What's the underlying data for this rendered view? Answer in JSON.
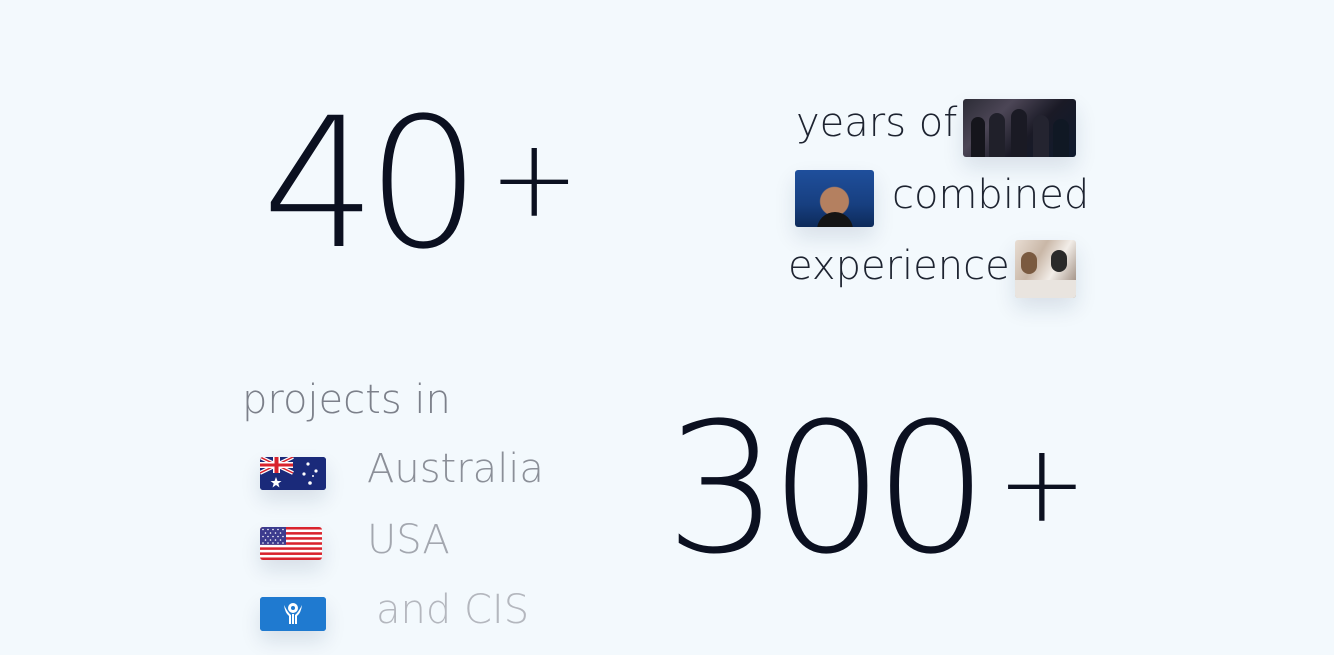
{
  "stats": {
    "years_number": "40",
    "years_suffix": "+",
    "projects_number": "300",
    "projects_suffix": "+"
  },
  "experience_caption": {
    "line1": "years of",
    "line2": "combined",
    "line3": "experience"
  },
  "projects_caption": {
    "title": "projects in",
    "countries": [
      {
        "name": "Australia",
        "flag_icon": "australia-flag-icon"
      },
      {
        "name": "USA",
        "flag_icon": "usa-flag-icon"
      },
      {
        "name": "and CIS",
        "flag_icon": "cis-flag-icon"
      }
    ]
  },
  "colors": {
    "background": "#f3f9fd",
    "number": "#0b1020",
    "caption": "#1d2330",
    "muted": "#8b8f98"
  }
}
